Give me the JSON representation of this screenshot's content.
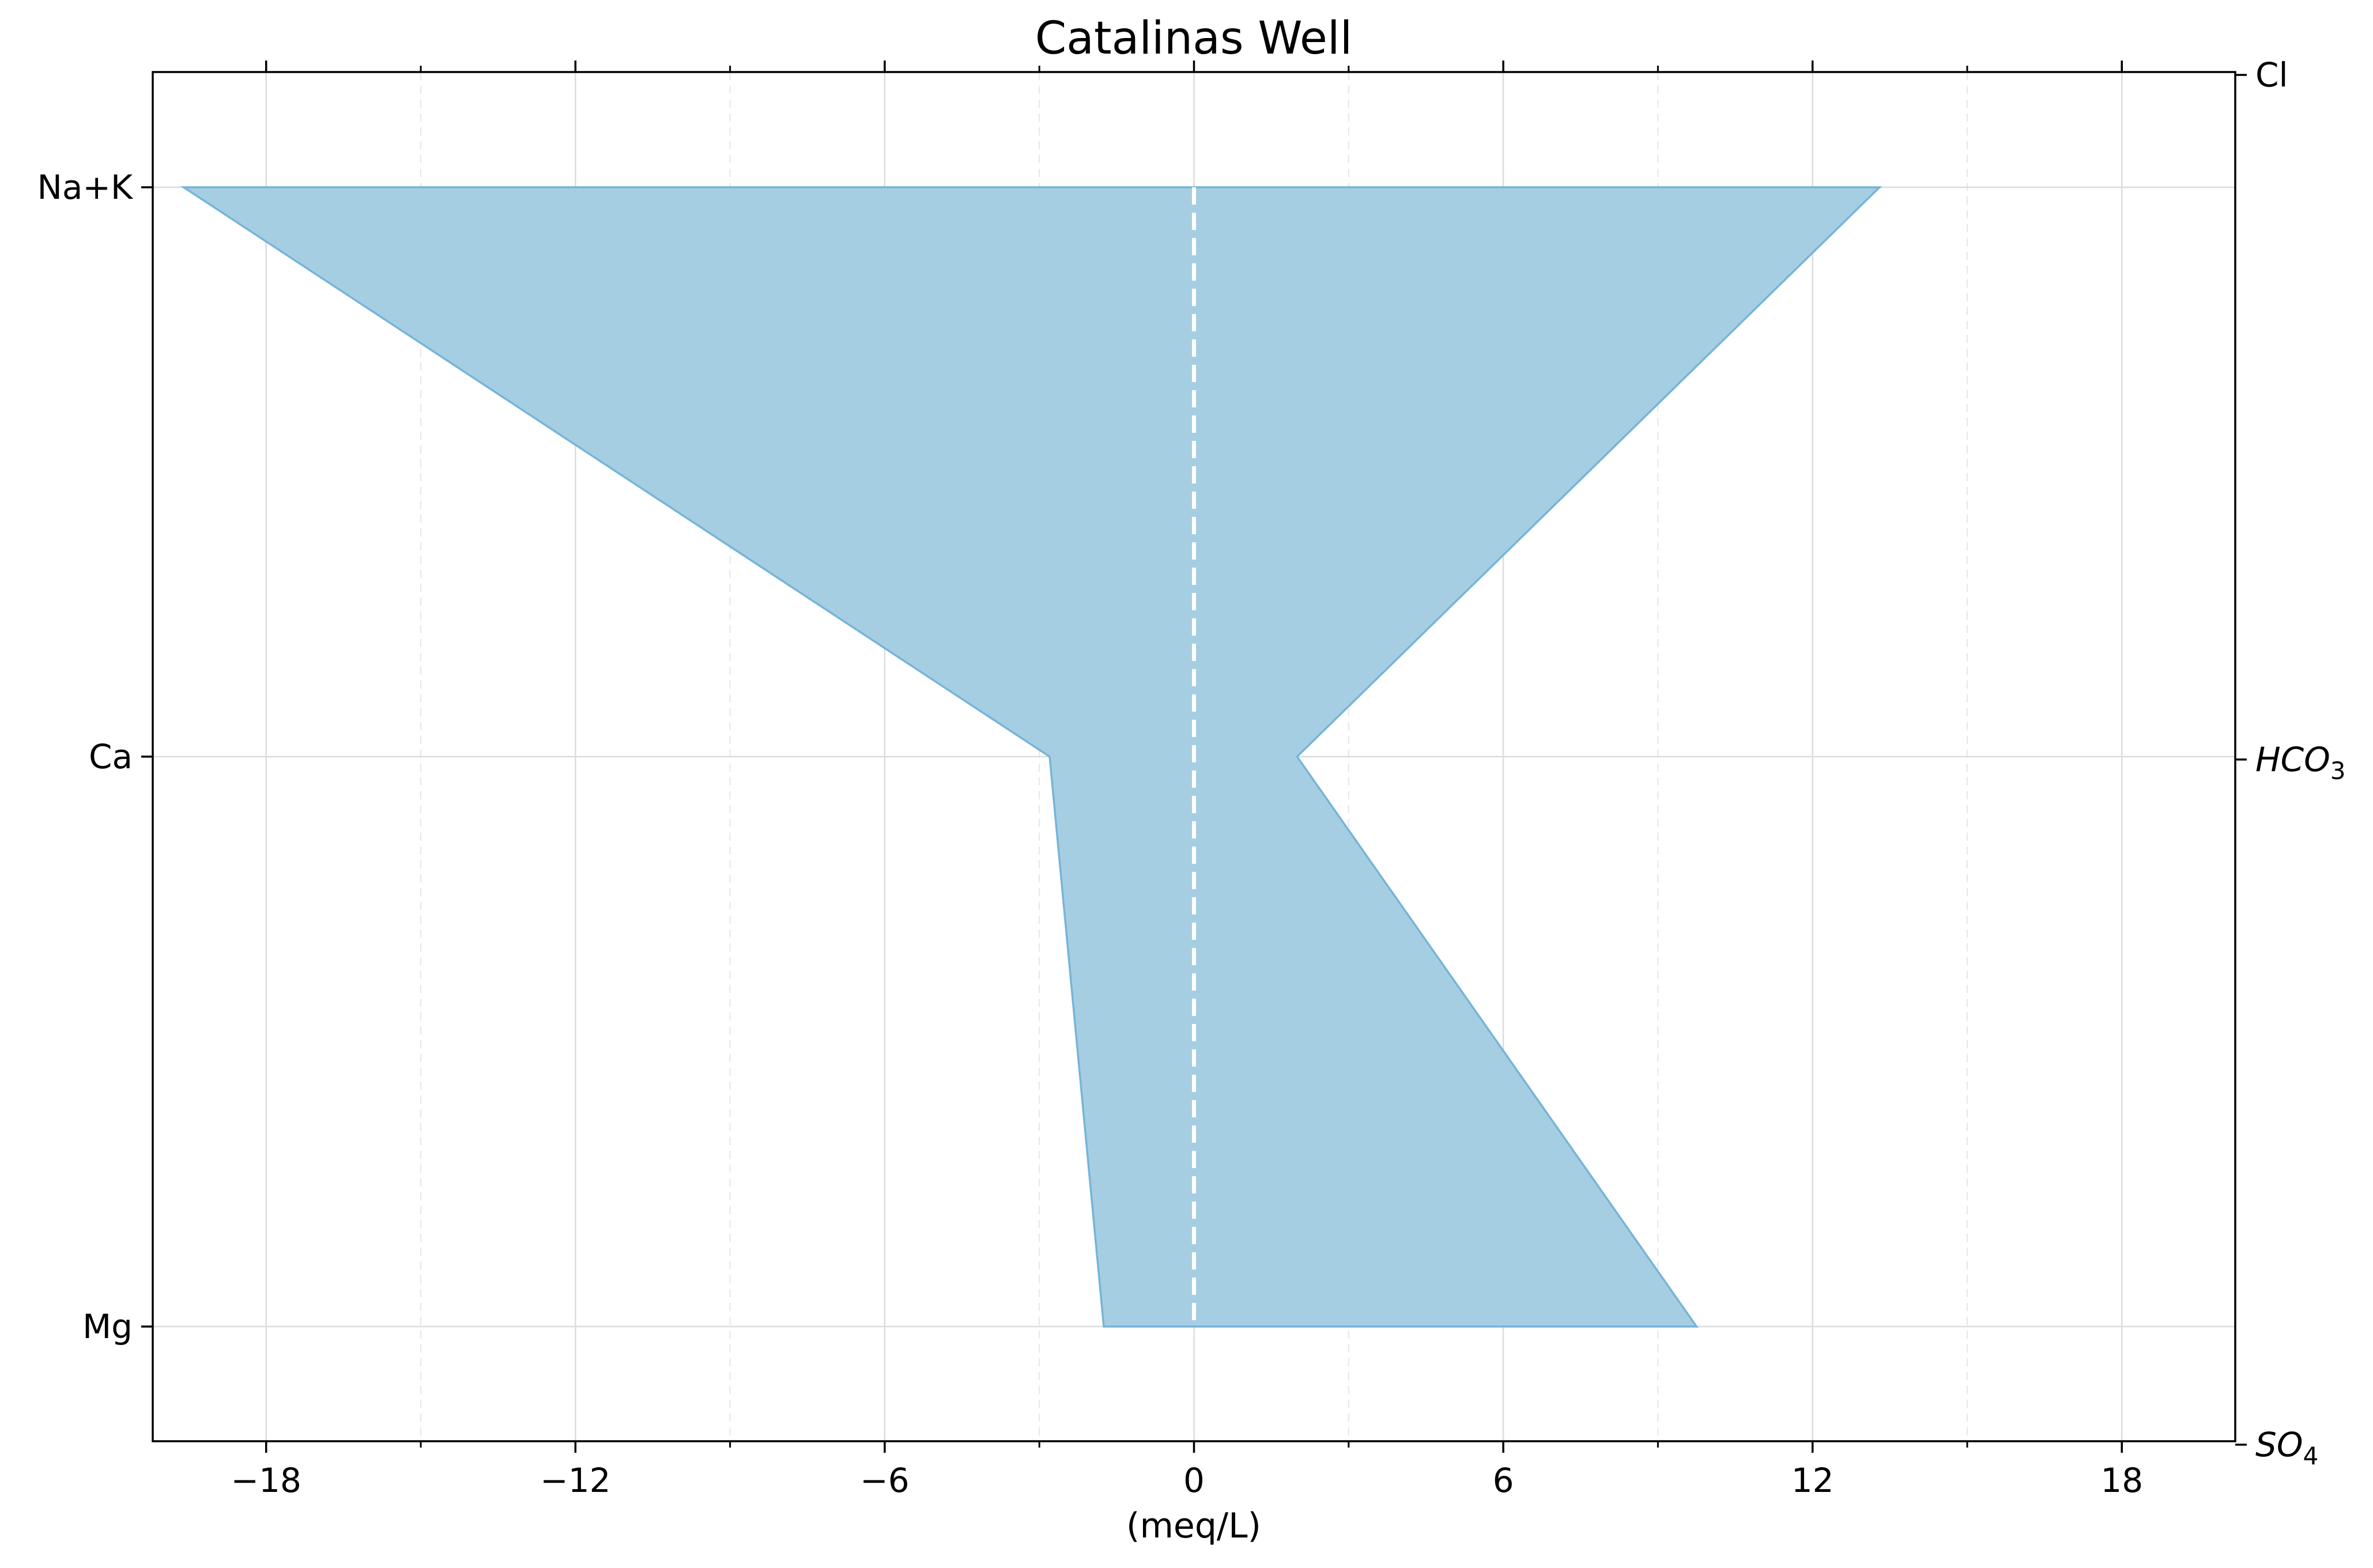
{
  "chart_data": {
    "type": "area",
    "title": "Catalinas Well",
    "xlabel": "(meq/L)",
    "xlim": [
      -20.2,
      20.2
    ],
    "x_ticks": [
      -18,
      -12,
      -6,
      0,
      6,
      12,
      18
    ],
    "x_tick_labels": [
      "−18",
      "−12",
      "−6",
      "0",
      "6",
      "12",
      "18"
    ],
    "x_minor_ticks": [
      -15,
      -9,
      -3,
      3,
      9,
      15
    ],
    "grid": true,
    "left_ions": [
      "Na+K",
      "Ca",
      "Mg"
    ],
    "right_ions": [
      {
        "base": "Cl",
        "sub": ""
      },
      {
        "base": "HCO",
        "sub": "3"
      },
      {
        "base": "SO",
        "sub": "4"
      }
    ],
    "series": [
      {
        "values_left": [
          -19.6,
          -2.8,
          -1.75
        ],
        "values_right": [
          13.3,
          2.0,
          9.75
        ]
      }
    ],
    "zero_line": true,
    "fill_color": "#a6cee3",
    "edge_color": "#76b4d8",
    "zero_line_color": "#ffffff"
  }
}
